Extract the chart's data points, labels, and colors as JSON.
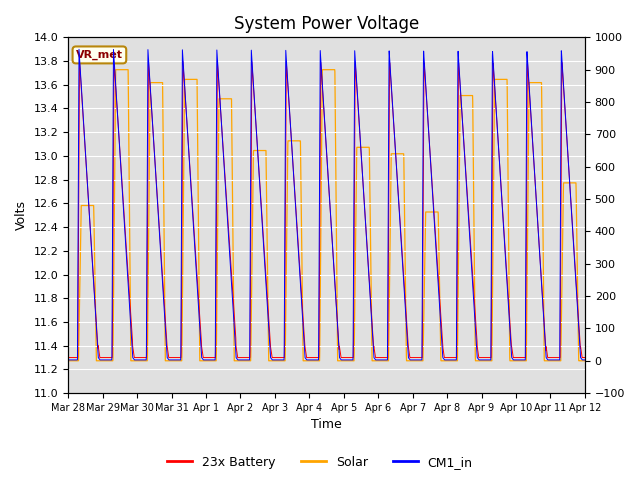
{
  "title": "System Power Voltage",
  "xlabel": "Time",
  "ylabel_left": "Volts",
  "ylim_left": [
    11.0,
    14.0
  ],
  "ylim_right": [
    -100,
    1000
  ],
  "annotation_text": "VR_met",
  "annotation_box_color": "#ffffee",
  "annotation_text_color": "#8b0000",
  "annotation_edge_color": "#b8860b",
  "legend_entries": [
    "23x Battery",
    "Solar",
    "CM1_in"
  ],
  "legend_colors": [
    "red",
    "orange",
    "blue"
  ],
  "x_tick_labels": [
    "Mar 28",
    "Mar 29",
    "Mar 30",
    "Mar 31",
    "Apr 1",
    "Apr 2",
    "Apr 3",
    "Apr 4",
    "Apr 5",
    "Apr 6",
    "Apr 7",
    "Apr 8",
    "Apr 9",
    "Apr 10",
    "Apr 11",
    "Apr 12"
  ],
  "plot_bg_color": "#e0e0e0",
  "grid_color": "white",
  "title_fontsize": 12,
  "num_days": 15,
  "solar_day_peaks": [
    480,
    900,
    860,
    870,
    810,
    650,
    680,
    900,
    660,
    640,
    460,
    820,
    870,
    860,
    550
  ],
  "yticks_left": [
    11.0,
    11.2,
    11.4,
    11.6,
    11.8,
    12.0,
    12.2,
    12.4,
    12.6,
    12.8,
    13.0,
    13.2,
    13.4,
    13.6,
    13.8,
    14.0
  ],
  "yticks_right": [
    -100,
    0,
    100,
    200,
    300,
    400,
    500,
    600,
    700,
    800,
    900,
    1000
  ]
}
